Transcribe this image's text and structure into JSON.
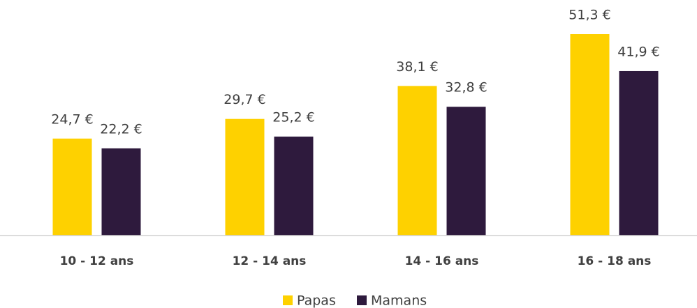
{
  "chart_data": {
    "type": "bar",
    "categories": [
      "10 - 12 ans",
      "12 - 14 ans",
      "14 - 16 ans",
      "16 - 18 ans"
    ],
    "series": [
      {
        "name": "Papas",
        "color": "#fed100",
        "values": [
          24.7,
          29.7,
          38.1,
          51.3
        ],
        "value_labels": [
          "24,7 €",
          "29,7 €",
          "38,1 €",
          "51,3 €"
        ]
      },
      {
        "name": "Mamans",
        "color": "#2e1a3d",
        "values": [
          22.2,
          25.2,
          32.8,
          41.9
        ],
        "value_labels": [
          "22,2 €",
          "25,2 €",
          "32,8 €",
          "41,9 €"
        ]
      }
    ],
    "ylim": [
      0,
      60
    ],
    "legend": "bottom"
  }
}
